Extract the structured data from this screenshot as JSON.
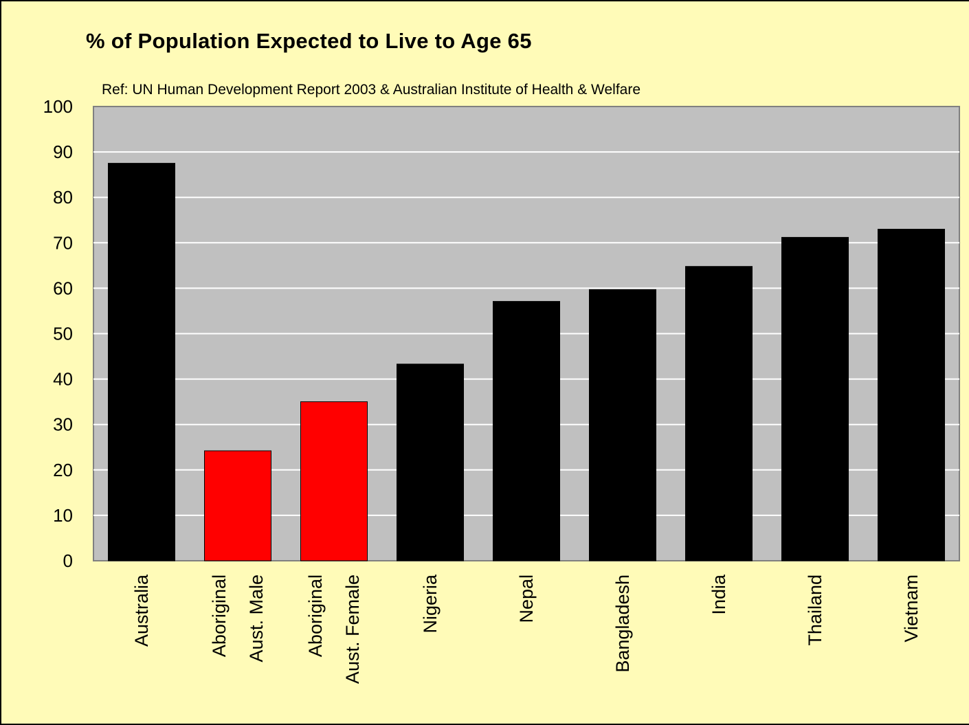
{
  "chart_data": {
    "type": "bar",
    "title": "% of Population Expected to Live to Age 65",
    "subtitle": "Ref: UN Human Development Report 2003 & Australian Institute of Health & Welfare",
    "xlabel": "",
    "ylabel": "",
    "ylim": [
      0,
      100
    ],
    "yticks": [
      "0",
      "10",
      "20",
      "30",
      "40",
      "50",
      "60",
      "70",
      "80",
      "90",
      "100"
    ],
    "grid": true,
    "legend": "none",
    "categories": [
      [
        "Australia"
      ],
      [
        "Aboriginal",
        "Aust. Male"
      ],
      [
        "Aboriginal",
        "Aust. Female"
      ],
      [
        "Nigeria"
      ],
      [
        "Nepal"
      ],
      [
        "Bangladesh"
      ],
      [
        "India"
      ],
      [
        "Thailand"
      ],
      [
        "Vietnam"
      ]
    ],
    "values": [
      87.5,
      24.2,
      35.0,
      43.3,
      57.1,
      59.7,
      64.8,
      71.2,
      73.0
    ],
    "bar_colors": [
      "#000000",
      "#ff0000",
      "#ff0000",
      "#000000",
      "#000000",
      "#000000",
      "#000000",
      "#000000",
      "#000000"
    ],
    "colors": {
      "background": "#fffbb8",
      "plot_area": "#c0c0c0",
      "gridline": "#ffffff",
      "highlight": "#ff0000",
      "default_bar": "#000000"
    }
  }
}
